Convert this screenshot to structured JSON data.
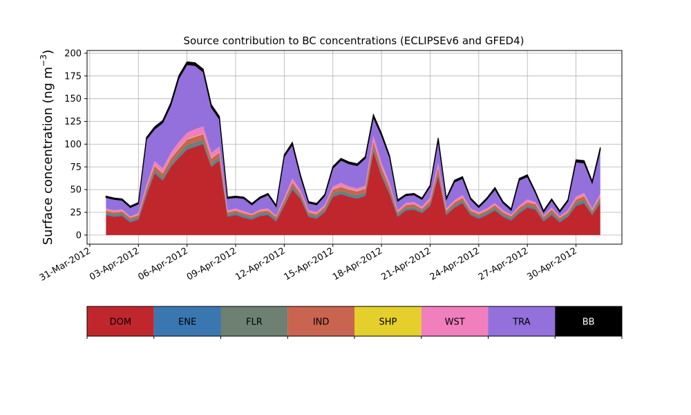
{
  "chart_data": {
    "type": "area",
    "stacked": true,
    "title": "Source contribution to BC concentrations (ECLIPSEv6 and GFED4)",
    "ylabel": "Surface concentration (ng m$^{-3}$)",
    "ylabel_parts": {
      "main": "Surface concentration (ng m",
      "sup": "−3",
      "close": ")"
    },
    "xlabel": "",
    "xlim": [
      "2012-03-30T20:00",
      "2012-05-02T20:00"
    ],
    "ylim": [
      -10,
      203
    ],
    "grid": true,
    "x_tick_labels": [
      "31-Mar-2012",
      "03-Apr-2012",
      "06-Apr-2012",
      "09-Apr-2012",
      "12-Apr-2012",
      "15-Apr-2012",
      "18-Apr-2012",
      "21-Apr-2012",
      "24-Apr-2012",
      "27-Apr-2012",
      "30-Apr-2012"
    ],
    "x_tick_values": [
      "2012-03-31",
      "2012-04-03",
      "2012-04-06",
      "2012-04-09",
      "2012-04-12",
      "2012-04-15",
      "2012-04-18",
      "2012-04-21",
      "2012-04-24",
      "2012-04-27",
      "2012-04-30"
    ],
    "y_tick_labels": [
      "0",
      "25",
      "50",
      "75",
      "100",
      "125",
      "150",
      "175",
      "200"
    ],
    "y_tick_values": [
      0,
      25,
      50,
      75,
      100,
      125,
      150,
      175,
      200
    ],
    "x": [
      "2012-04-01",
      "2012-04-01T12:00",
      "2012-04-02",
      "2012-04-02T12:00",
      "2012-04-03",
      "2012-04-03T12:00",
      "2012-04-04",
      "2012-04-04T12:00",
      "2012-04-05",
      "2012-04-05T12:00",
      "2012-04-06",
      "2012-04-06T12:00",
      "2012-04-07",
      "2012-04-07T12:00",
      "2012-04-08",
      "2012-04-08T12:00",
      "2012-04-09",
      "2012-04-09T12:00",
      "2012-04-10",
      "2012-04-10T12:00",
      "2012-04-11",
      "2012-04-11T12:00",
      "2012-04-12",
      "2012-04-12T12:00",
      "2012-04-13",
      "2012-04-13T12:00",
      "2012-04-14",
      "2012-04-14T12:00",
      "2012-04-15",
      "2012-04-15T12:00",
      "2012-04-16",
      "2012-04-16T12:00",
      "2012-04-17",
      "2012-04-17T12:00",
      "2012-04-18",
      "2012-04-18T12:00",
      "2012-04-19",
      "2012-04-19T12:00",
      "2012-04-20",
      "2012-04-20T12:00",
      "2012-04-21",
      "2012-04-21T12:00",
      "2012-04-22",
      "2012-04-22T12:00",
      "2012-04-23",
      "2012-04-23T12:00",
      "2012-04-24",
      "2012-04-24T12:00",
      "2012-04-25",
      "2012-04-25T12:00",
      "2012-04-26",
      "2012-04-26T12:00",
      "2012-04-27",
      "2012-04-27T12:00",
      "2012-04-28",
      "2012-04-28T12:00",
      "2012-04-29",
      "2012-04-29T12:00",
      "2012-04-30",
      "2012-04-30T12:00",
      "2012-05-01",
      "2012-05-01T12:00"
    ],
    "series": [
      {
        "name": "DOM",
        "color": "#c0272d",
        "values": [
          22,
          20,
          21,
          14,
          17,
          44,
          68,
          60,
          75,
          85,
          94,
          97,
          100,
          75,
          82,
          20,
          22,
          19,
          17,
          21,
          22,
          15,
          32,
          50,
          40,
          20,
          18,
          25,
          42,
          45,
          42,
          40,
          43,
          92,
          65,
          45,
          20,
          27,
          28,
          24,
          32,
          65,
          22,
          30,
          35,
          22,
          18,
          22,
          27,
          20,
          16,
          24,
          30,
          28,
          15,
          22,
          14,
          20,
          32,
          35,
          22,
          35
        ]
      },
      {
        "name": "ENE",
        "color": "#3a77b0",
        "values": [
          1,
          1,
          1,
          1,
          1,
          1,
          1,
          1,
          1,
          1,
          1,
          1,
          1,
          1,
          1,
          1,
          1,
          1,
          1,
          1,
          1,
          1,
          1,
          1,
          1,
          1,
          1,
          1,
          1,
          1,
          1,
          1,
          1,
          1,
          1,
          1,
          1,
          1,
          1,
          1,
          1,
          1,
          1,
          1,
          1,
          1,
          1,
          1,
          1,
          1,
          1,
          1,
          1,
          1,
          1,
          1,
          1,
          1,
          1,
          1,
          1,
          1
        ]
      },
      {
        "name": "FLR",
        "color": "#6d8071",
        "values": [
          2,
          2,
          2,
          2,
          2,
          3,
          3,
          3,
          3,
          4,
          4,
          4,
          4,
          3,
          3,
          2,
          2,
          2,
          2,
          2,
          2,
          2,
          2,
          3,
          2,
          2,
          2,
          2,
          3,
          3,
          3,
          3,
          3,
          4,
          3,
          3,
          2,
          2,
          2,
          2,
          2,
          3,
          2,
          2,
          2,
          2,
          2,
          2,
          2,
          2,
          2,
          2,
          2,
          2,
          2,
          2,
          2,
          2,
          3,
          3,
          2,
          3
        ]
      },
      {
        "name": "IND",
        "color": "#c8644f",
        "values": [
          2,
          2,
          2,
          2,
          2,
          3,
          4,
          4,
          5,
          5,
          6,
          6,
          6,
          5,
          5,
          2,
          2,
          2,
          2,
          2,
          2,
          2,
          3,
          4,
          3,
          2,
          2,
          3,
          4,
          4,
          4,
          4,
          4,
          6,
          5,
          4,
          2,
          3,
          3,
          2,
          3,
          5,
          2,
          3,
          3,
          2,
          2,
          2,
          3,
          2,
          2,
          3,
          3,
          3,
          2,
          3,
          2,
          2,
          3,
          4,
          2,
          3
        ]
      },
      {
        "name": "SHP",
        "color": "#e5cf2c",
        "values": [
          0.3,
          0.3,
          0.3,
          0.3,
          0.3,
          0.4,
          0.5,
          0.5,
          0.5,
          0.5,
          0.5,
          0.5,
          0.5,
          0.5,
          0.5,
          0.3,
          0.3,
          0.3,
          0.3,
          0.3,
          0.3,
          0.3,
          0.3,
          0.4,
          0.3,
          0.3,
          0.3,
          0.3,
          0.4,
          0.4,
          0.4,
          0.4,
          0.4,
          0.5,
          0.5,
          0.4,
          0.3,
          0.3,
          0.3,
          0.3,
          0.3,
          0.4,
          0.3,
          0.3,
          0.3,
          0.3,
          0.3,
          0.3,
          0.3,
          0.3,
          0.3,
          0.3,
          0.3,
          0.3,
          0.3,
          0.3,
          0.3,
          0.3,
          0.3,
          0.4,
          0.3,
          0.4
        ]
      },
      {
        "name": "WST",
        "color": "#f17fbe",
        "values": [
          2,
          2,
          2,
          1,
          2,
          4,
          5,
          5,
          6,
          7,
          7,
          8,
          8,
          6,
          6,
          2,
          2,
          2,
          1,
          2,
          2,
          1,
          3,
          4,
          3,
          2,
          2,
          2,
          3,
          4,
          3,
          3,
          3,
          6,
          5,
          4,
          2,
          2,
          2,
          2,
          3,
          5,
          2,
          2,
          3,
          2,
          2,
          2,
          2,
          2,
          1,
          2,
          3,
          2,
          1,
          2,
          1,
          2,
          3,
          3,
          2,
          3
        ]
      },
      {
        "name": "TRA",
        "color": "#9370db",
        "values": [
          12,
          12,
          10,
          10,
          10,
          50,
          35,
          50,
          52,
          70,
          75,
          70,
          60,
          50,
          30,
          13,
          12,
          14,
          10,
          12,
          15,
          10,
          45,
          37,
          15,
          8,
          8,
          10,
          20,
          25,
          25,
          25,
          30,
          20,
          30,
          28,
          10,
          8,
          8,
          8,
          12,
          25,
          10,
          20,
          18,
          10,
          5,
          10,
          15,
          8,
          5,
          28,
          25,
          10,
          4,
          8,
          5,
          10,
          38,
          33,
          28,
          48
        ]
      },
      {
        "name": "BB",
        "color": "#000000",
        "values": [
          1.5,
          1.5,
          1.5,
          1.5,
          1.5,
          2,
          2.5,
          2.5,
          3,
          3,
          3,
          3,
          3,
          3,
          3,
          1.5,
          1.5,
          1.5,
          1.5,
          1.5,
          1.5,
          1.5,
          2,
          2.5,
          2,
          1.5,
          1.5,
          1.5,
          2,
          2,
          2,
          2,
          2,
          3,
          2.5,
          2,
          1.5,
          1.5,
          1.5,
          1.5,
          1.5,
          2.5,
          1.5,
          2,
          2,
          1.5,
          1.5,
          1.5,
          2,
          1.5,
          1.5,
          2,
          2,
          1.5,
          1.5,
          1.5,
          1.5,
          1.5,
          2.5,
          2.5,
          2,
          3
        ]
      }
    ],
    "legend": [
      "DOM",
      "ENE",
      "FLR",
      "IND",
      "SHP",
      "WST",
      "TRA",
      "BB"
    ],
    "legend_text_colors": {
      "DOM": "#000000",
      "ENE": "#000000",
      "FLR": "#000000",
      "IND": "#000000",
      "SHP": "#000000",
      "WST": "#000000",
      "TRA": "#000000",
      "BB": "#ffffff"
    },
    "legend_placement": "bottom (separate colorbar-style strip)"
  }
}
